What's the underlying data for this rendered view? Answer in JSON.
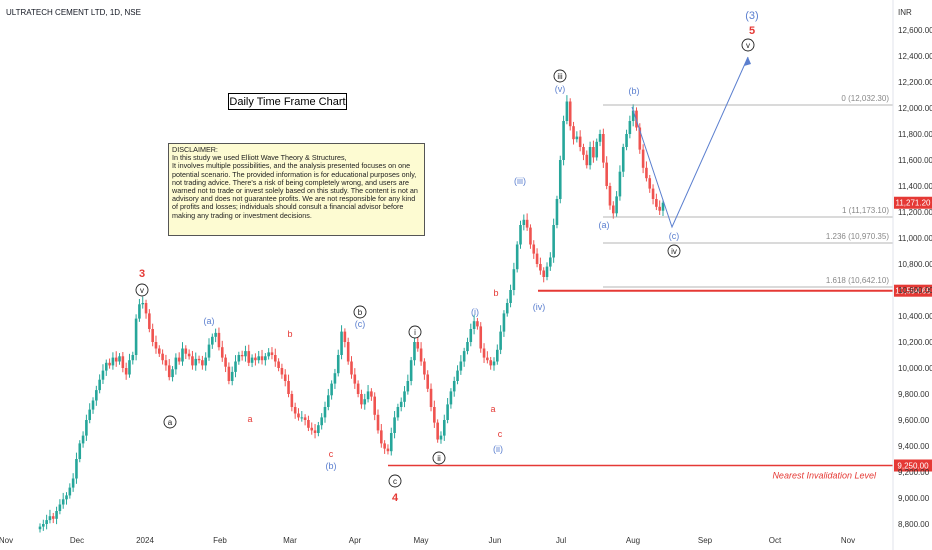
{
  "header": {
    "symbol_title": "ULTRATECH CEMENT LTD, 1D, NSE",
    "currency": "INR"
  },
  "boxes": {
    "timeframe_label": "Daily Time Frame Chart",
    "disclaimer_lines": [
      "DISCLAIMER:",
      "In this study we used Elliott Wave Theory & Structures,",
      "It involves multiple possibilities, and the analysis presented focuses on one potential scenario. The provided information is for educational purposes only, not trading advice. There's a risk of being completely wrong, and users are warned not to trade or invest solely based on this study. The content is not an advisory and does not guarantee profits. We are not responsible for any kind of profits and losses; individuals should consult a financial advisor before making any trading or investment decisions."
    ]
  },
  "chart_data": {
    "type": "candlestick",
    "title": "ULTRATECH CEMENT LTD, 1D, NSE",
    "xlabel": "",
    "ylabel": "",
    "ylim": [
      8700,
      12800
    ],
    "x_ticks": [
      "Nov",
      "Dec",
      "2024",
      "Feb",
      "Mar",
      "Apr",
      "May",
      "Jun",
      "Jul",
      "Aug",
      "Sep",
      "Oct",
      "Nov"
    ],
    "y_ticks": [
      "12,600.00",
      "12,400.00",
      "12,200.00",
      "12,000.00",
      "11,800.00",
      "11,600.00",
      "11,400.00",
      "11,200.00",
      "11,000.00",
      "10,800.00",
      "10,600.00",
      "10,400.00",
      "10,200.00",
      "10,000.00",
      "9,800.00",
      "9,600.00",
      "9,400.00",
      "9,200.00",
      "9,000.00",
      "8,800.00"
    ],
    "current_price": "11,271.20",
    "invalidation_price": "9,250.00",
    "support_price": "10,594.65",
    "up_color": "#26a69a",
    "down_color": "#ef5350",
    "path_color": "#5b7fcf",
    "closes": [
      8780,
      8800,
      8830,
      8860,
      8840,
      8900,
      8950,
      8990,
      9020,
      9080,
      9150,
      9300,
      9420,
      9480,
      9600,
      9680,
      9750,
      9830,
      9910,
      9980,
      10040,
      10020,
      10080,
      10050,
      10090,
      10000,
      9950,
      10060,
      10100,
      10380,
      10490,
      10500,
      10420,
      10300,
      10200,
      10150,
      10110,
      10060,
      10020,
      9930,
      9990,
      10080,
      10050,
      10150,
      10110,
      10090,
      10020,
      10070,
      10060,
      10020,
      10080,
      10180,
      10240,
      10270,
      10160,
      10080,
      10010,
      9900,
      9970,
      10050,
      10100,
      10090,
      10130,
      10040,
      10080,
      10060,
      10090,
      10060,
      10090,
      10120,
      10100,
      10050,
      10000,
      9950,
      9900,
      9800,
      9700,
      9650,
      9620,
      9620,
      9600,
      9540,
      9520,
      9500,
      9560,
      9620,
      9700,
      9790,
      9880,
      9960,
      10100,
      10280,
      10200,
      10050,
      9950,
      9880,
      9800,
      9720,
      9760,
      9820,
      9780,
      9640,
      9520,
      9420,
      9380,
      9360,
      9500,
      9620,
      9700,
      9740,
      9820,
      9900,
      10060,
      10200,
      10150,
      10050,
      9950,
      9840,
      9700,
      9580,
      9450,
      9480,
      9600,
      9720,
      9820,
      9900,
      9980,
      10050,
      10130,
      10200,
      10300,
      10360,
      10320,
      10150,
      10080,
      10060,
      10020,
      10050,
      10140,
      10280,
      10420,
      10500,
      10600,
      10760,
      10950,
      11100,
      11140,
      11080,
      10950,
      10880,
      10800,
      10750,
      10700,
      10780,
      10850,
      11100,
      11300,
      11600,
      11900,
      12050,
      11860,
      11760,
      11780,
      11700,
      11640,
      11560,
      11700,
      11620,
      11740,
      11800,
      11580,
      11400,
      11250,
      11190,
      11320,
      11510,
      11700,
      11800,
      11900,
      11980,
      11850,
      11680,
      11540,
      11460,
      11380,
      11300,
      11240,
      11210,
      11271.2
    ],
    "fib_levels": [
      {
        "ratio": "0",
        "price": "12,032.30"
      },
      {
        "ratio": "1",
        "price": "11,173.10"
      },
      {
        "ratio": "1.236",
        "price": "10,970.35"
      },
      {
        "ratio": "1.618",
        "price": "10,642.10"
      }
    ],
    "annotations": {
      "invalidation_text": "Nearest Invalidation Level"
    }
  },
  "wave_labels": {
    "red_3": "3",
    "v_top": "v",
    "a_circle": "a",
    "a_paren_blue": "(a)",
    "a_red_1": "a",
    "b_red_1": "b",
    "c_red_1": "c",
    "b_paren_blue_1": "(b)",
    "b_circle": "b",
    "c_paren_blue_1": "(c)",
    "c_circle": "c",
    "red_4": "4",
    "i_circle": "i",
    "ii_circle": "ii",
    "i_paren": "(i)",
    "ii_paren": "(ii)",
    "a_red_2": "a",
    "b_red_2": "b",
    "c_red_2": "c",
    "iii_paren": "(iii)",
    "iv_paren": "(iv)",
    "iii_circle": "iii",
    "v_paren": "(v)",
    "a_paren_2": "(a)",
    "b_paren_2": "(b)",
    "c_paren_2": "(c)",
    "iv_circle": "iv",
    "v_circle": "v",
    "three_paren": "(3)",
    "red_5": "5"
  }
}
